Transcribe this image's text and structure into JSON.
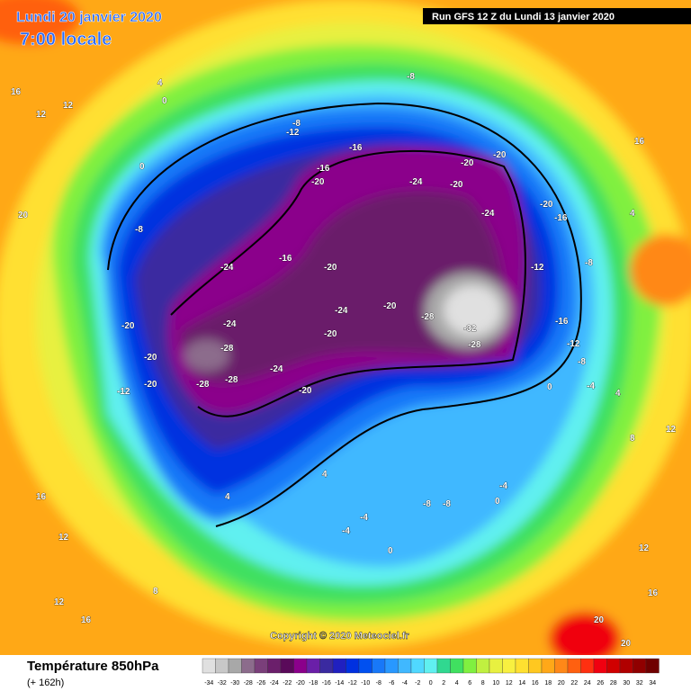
{
  "header": {
    "date": "Lundi 20 janvier 2020",
    "time": "7:00 locale",
    "run": "Run GFS 12 Z du Lundi 13 janvier 2020"
  },
  "footer": {
    "title": "Température 850hPa",
    "lead": "(+ 162h)",
    "copyright": "Copyright © 2020 Meteociel.fr"
  },
  "legend": {
    "ticks": [
      -34,
      -32,
      -30,
      -28,
      -26,
      -24,
      -22,
      -20,
      -18,
      -16,
      -14,
      -12,
      -10,
      -8,
      -6,
      -4,
      -2,
      0,
      2,
      4,
      6,
      8,
      10,
      12,
      14,
      16,
      18,
      20,
      22,
      24,
      26,
      28,
      30,
      32,
      34
    ],
    "colors": [
      "#e0e0e0",
      "#c8c8c8",
      "#a8a8a8",
      "#8c6c8c",
      "#7a3f7a",
      "#6b1f6b",
      "#5a0a5a",
      "#8b008b",
      "#6a1fa8",
      "#3a2aa0",
      "#2020c0",
      "#0030e0",
      "#0050f0",
      "#1878f8",
      "#2898ff",
      "#40b8ff",
      "#50d8ff",
      "#60f0f0",
      "#30d890",
      "#40e060",
      "#80f040",
      "#c0f040",
      "#e8f040",
      "#f8f040",
      "#ffe030",
      "#ffc820",
      "#ffa818",
      "#ff8818",
      "#ff6010",
      "#ff3010",
      "#f00010",
      "#d00000",
      "#b00000",
      "#900000",
      "#700000"
    ]
  },
  "map": {
    "labels": [
      16,
      12,
      12,
      4,
      0,
      -8,
      -8,
      -12,
      -16,
      -16,
      -20,
      -20,
      -20,
      -24,
      -20,
      -24,
      -16,
      -20,
      -12,
      -8,
      4,
      16,
      -20,
      -24,
      -28,
      -28,
      -28,
      -24,
      -20,
      -12,
      -20,
      -24,
      -20,
      -28,
      -32,
      -28,
      -20,
      -16,
      -12,
      -8,
      -4,
      0,
      4,
      8,
      12,
      -8,
      -4,
      0,
      -4,
      0,
      4,
      -4,
      -8,
      4,
      12,
      16,
      20,
      20,
      12,
      16,
      8,
      12,
      16,
      20,
      0,
      -8,
      -16,
      -20,
      -24,
      -20
    ]
  }
}
